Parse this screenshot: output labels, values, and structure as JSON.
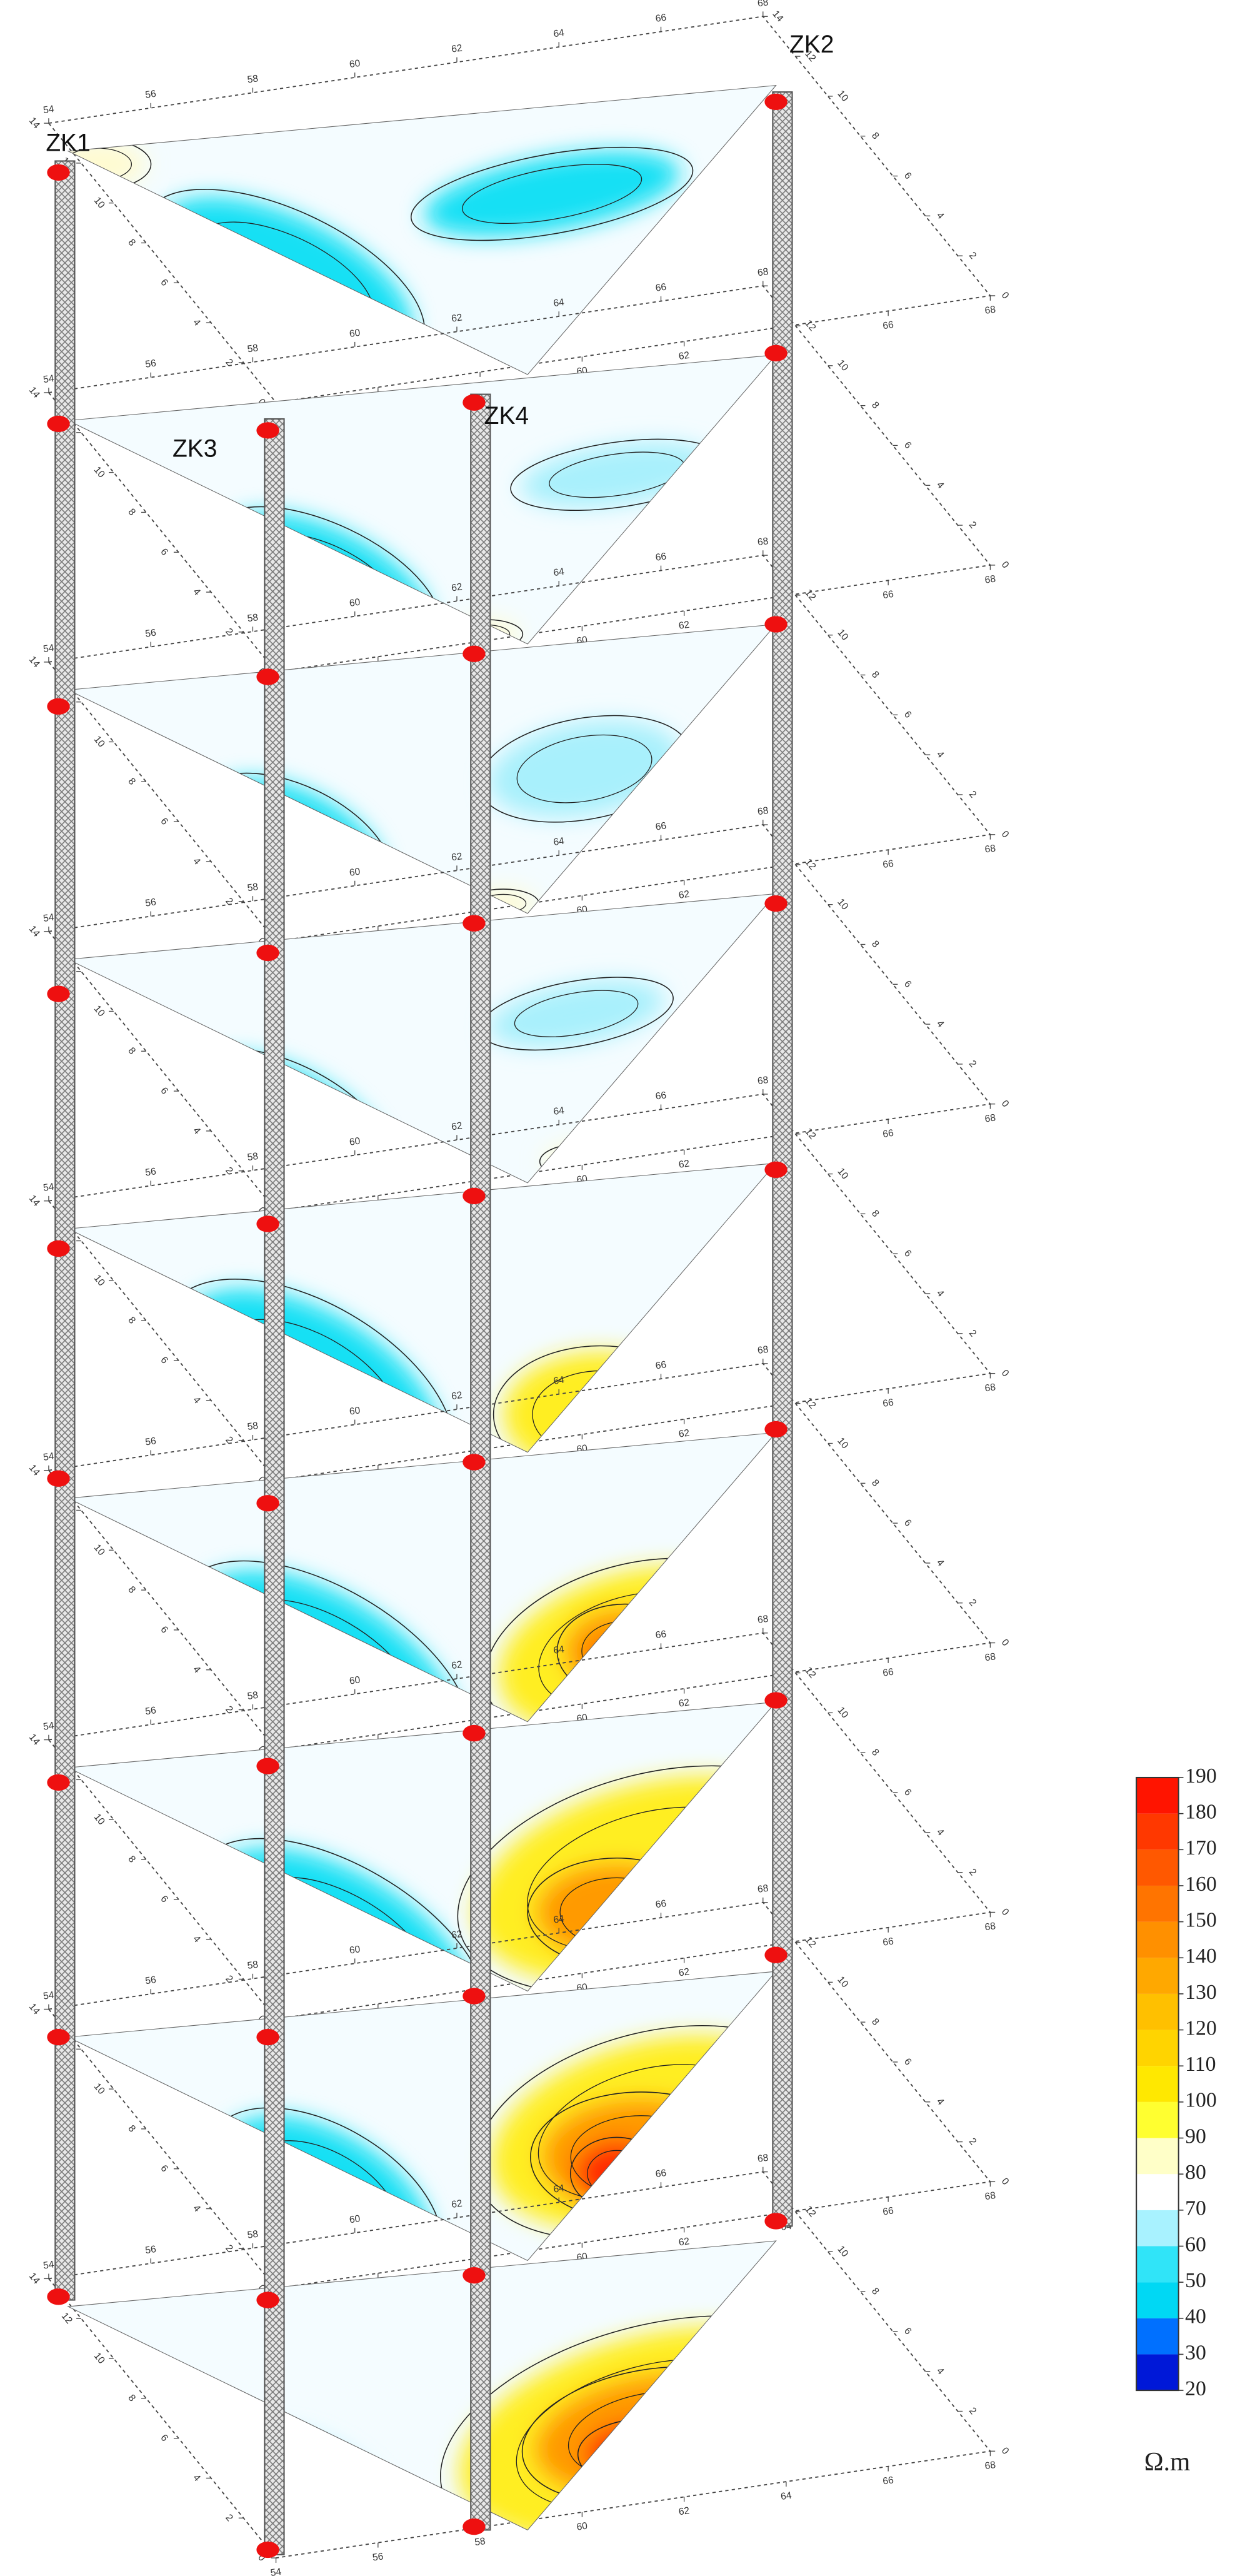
{
  "chart_data": {
    "type": "contour",
    "slices": 9,
    "boreholes": [
      {
        "name": "ZK1"
      },
      {
        "name": "ZK2"
      },
      {
        "name": "ZK3"
      },
      {
        "name": "ZK4"
      }
    ],
    "xticks": [
      54,
      56,
      58,
      60,
      62,
      64,
      66,
      68
    ],
    "yticks": [
      0,
      2,
      4,
      6,
      8,
      10,
      12,
      14
    ],
    "colorbar": {
      "label": "Ω.m",
      "ylim": [
        20,
        190
      ],
      "ticks": [
        20,
        30,
        40,
        50,
        60,
        70,
        80,
        90,
        100,
        110,
        120,
        130,
        140,
        150,
        160,
        170,
        180,
        190
      ],
      "colors": [
        "#0018d8",
        "#0070ff",
        "#00d8f4",
        "#30e4f8",
        "#a8f2ff",
        "#ffffff",
        "#ffffc8",
        "#ffff30",
        "#ffe800",
        "#ffd400",
        "#ffc000",
        "#ffa800",
        "#ff9000",
        "#ff7400",
        "#ff5800",
        "#ff3800",
        "#ff1400"
      ]
    }
  }
}
